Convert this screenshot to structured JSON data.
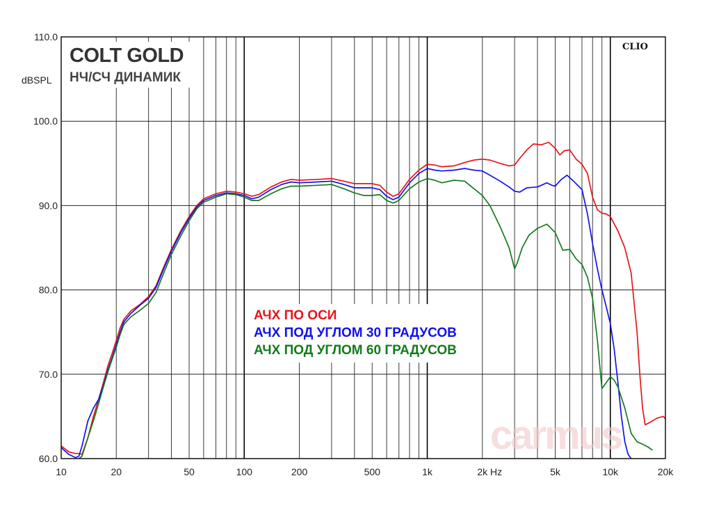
{
  "chart_data": {
    "type": "line",
    "title": "COLT GOLD",
    "subtitle": "НЧ/СЧ ДИНАМИК",
    "brand": "CLIO",
    "watermark": "carmus",
    "ylabel": "dBSPL",
    "xunit": "Hz",
    "xscale": "log",
    "xlim": [
      10,
      20000
    ],
    "ylim": [
      60,
      110
    ],
    "grid": true,
    "yticks": [
      "60.0",
      "70.0",
      "80.0",
      "90.0",
      "100.0",
      "110.0"
    ],
    "xticks": [
      {
        "value": 10,
        "label": "10"
      },
      {
        "value": 20,
        "label": "20"
      },
      {
        "value": 50,
        "label": "50"
      },
      {
        "value": 100,
        "label": "100"
      },
      {
        "value": 200,
        "label": "200"
      },
      {
        "value": 500,
        "label": "500"
      },
      {
        "value": 1000,
        "label": "1k"
      },
      {
        "value": 2000,
        "label": "2k"
      },
      {
        "value": 5000,
        "label": "5k"
      },
      {
        "value": 10000,
        "label": "10k"
      },
      {
        "value": 20000,
        "label": "20k"
      }
    ],
    "legend_position": "center",
    "series": [
      {
        "name": "АЧХ ПО ОСИ",
        "color": "#e8141b",
        "points": [
          [
            10,
            61.5
          ],
          [
            11,
            60.8
          ],
          [
            12,
            60.6
          ],
          [
            12.5,
            60.6
          ],
          [
            13,
            60.5
          ],
          [
            14,
            62.5
          ],
          [
            15,
            65
          ],
          [
            16,
            67
          ],
          [
            17,
            69
          ],
          [
            18,
            71
          ],
          [
            19,
            72.5
          ],
          [
            20,
            74
          ],
          [
            21,
            75.5
          ],
          [
            22,
            76.5
          ],
          [
            24,
            77.5
          ],
          [
            27,
            78.3
          ],
          [
            30,
            79.2
          ],
          [
            33,
            80.5
          ],
          [
            36,
            82.5
          ],
          [
            40,
            84.8
          ],
          [
            45,
            87
          ],
          [
            50,
            88.7
          ],
          [
            55,
            90
          ],
          [
            60,
            90.8
          ],
          [
            70,
            91.4
          ],
          [
            80,
            91.7
          ],
          [
            90,
            91.6
          ],
          [
            100,
            91.4
          ],
          [
            110,
            91.1
          ],
          [
            120,
            91.3
          ],
          [
            140,
            92.2
          ],
          [
            160,
            92.8
          ],
          [
            180,
            93.1
          ],
          [
            200,
            93.0
          ],
          [
            250,
            93.1
          ],
          [
            300,
            93.2
          ],
          [
            350,
            92.9
          ],
          [
            400,
            92.6
          ],
          [
            500,
            92.6
          ],
          [
            550,
            92.4
          ],
          [
            600,
            91.6
          ],
          [
            650,
            91.1
          ],
          [
            700,
            91.4
          ],
          [
            800,
            93.1
          ],
          [
            900,
            94.2
          ],
          [
            1000,
            94.9
          ],
          [
            1100,
            94.8
          ],
          [
            1200,
            94.6
          ],
          [
            1400,
            94.7
          ],
          [
            1600,
            95.1
          ],
          [
            1800,
            95.4
          ],
          [
            2000,
            95.5
          ],
          [
            2200,
            95.4
          ],
          [
            2500,
            95.0
          ],
          [
            2800,
            94.7
          ],
          [
            3000,
            94.8
          ],
          [
            3200,
            95.6
          ],
          [
            3500,
            96.6
          ],
          [
            3800,
            97.3
          ],
          [
            4200,
            97.2
          ],
          [
            4600,
            97.5
          ],
          [
            5000,
            96.8
          ],
          [
            5300,
            96.0
          ],
          [
            5600,
            96.5
          ],
          [
            6000,
            96.6
          ],
          [
            6500,
            95.5
          ],
          [
            7000,
            94.9
          ],
          [
            7500,
            93.8
          ],
          [
            8000,
            91
          ],
          [
            8500,
            89.5
          ],
          [
            9000,
            89.1
          ],
          [
            9500,
            89
          ],
          [
            10000,
            88.7
          ],
          [
            11000,
            87
          ],
          [
            12000,
            85
          ],
          [
            13000,
            82
          ],
          [
            14000,
            75
          ],
          [
            14500,
            70
          ],
          [
            15000,
            66
          ],
          [
            15500,
            64
          ],
          [
            16500,
            64.3
          ],
          [
            18000,
            64.8
          ],
          [
            19500,
            65
          ],
          [
            20000,
            64.7
          ],
          [
            20500,
            63.8
          ],
          [
            21500,
            62.5
          ]
        ]
      },
      {
        "name": "АЧХ ПОД УГЛОМ 30 ГРАДУСОВ",
        "color": "#1111ee",
        "points": [
          [
            10,
            61.3
          ],
          [
            11,
            60.5
          ],
          [
            12,
            60.1
          ],
          [
            12.5,
            60.3
          ],
          [
            13,
            61.5
          ],
          [
            14,
            64.5
          ],
          [
            15,
            66
          ],
          [
            16,
            67
          ],
          [
            17,
            68.7
          ],
          [
            18,
            70.5
          ],
          [
            19,
            72
          ],
          [
            20,
            73.5
          ],
          [
            21,
            75
          ],
          [
            22,
            76.2
          ],
          [
            24,
            77.2
          ],
          [
            27,
            78.2
          ],
          [
            30,
            79
          ],
          [
            33,
            80.3
          ],
          [
            36,
            82.3
          ],
          [
            40,
            84.6
          ],
          [
            45,
            86.8
          ],
          [
            50,
            88.5
          ],
          [
            55,
            89.8
          ],
          [
            60,
            90.6
          ],
          [
            70,
            91.2
          ],
          [
            80,
            91.5
          ],
          [
            90,
            91.4
          ],
          [
            100,
            91.2
          ],
          [
            110,
            90.8
          ],
          [
            120,
            91.0
          ],
          [
            140,
            91.9
          ],
          [
            160,
            92.5
          ],
          [
            180,
            92.8
          ],
          [
            200,
            92.7
          ],
          [
            250,
            92.8
          ],
          [
            300,
            92.9
          ],
          [
            350,
            92.5
          ],
          [
            400,
            92.1
          ],
          [
            500,
            92.1
          ],
          [
            550,
            91.9
          ],
          [
            600,
            91.1
          ],
          [
            650,
            90.7
          ],
          [
            700,
            91.0
          ],
          [
            800,
            92.7
          ],
          [
            900,
            93.8
          ],
          [
            1000,
            94.4
          ],
          [
            1100,
            94.2
          ],
          [
            1200,
            94.1
          ],
          [
            1400,
            94.2
          ],
          [
            1600,
            94.4
          ],
          [
            1800,
            94.2
          ],
          [
            2000,
            94.1
          ],
          [
            2200,
            93.6
          ],
          [
            2500,
            92.9
          ],
          [
            2800,
            92.2
          ],
          [
            3000,
            91.7
          ],
          [
            3200,
            91.6
          ],
          [
            3500,
            92.1
          ],
          [
            4000,
            92.2
          ],
          [
            4500,
            92.7
          ],
          [
            4800,
            92.4
          ],
          [
            5000,
            92.3
          ],
          [
            5400,
            93.1
          ],
          [
            5800,
            93.6
          ],
          [
            6300,
            92.9
          ],
          [
            7000,
            91.9
          ],
          [
            7500,
            89
          ],
          [
            8000,
            85.5
          ],
          [
            8500,
            82.5
          ],
          [
            9000,
            80
          ],
          [
            9500,
            78
          ],
          [
            10000,
            76
          ],
          [
            10500,
            73
          ],
          [
            11000,
            69
          ],
          [
            11500,
            65
          ],
          [
            12000,
            62
          ],
          [
            12500,
            60.5
          ],
          [
            13000,
            60
          ]
        ]
      },
      {
        "name": "АЧХ ПОД УГЛОМ 60 ГРАДУСОВ",
        "color": "#137a1e",
        "points": [
          [
            12.5,
            60.0
          ],
          [
            13,
            60.3
          ],
          [
            14,
            62.5
          ],
          [
            15,
            64.5
          ],
          [
            16,
            66.5
          ],
          [
            17,
            68.5
          ],
          [
            18,
            70.3
          ],
          [
            19,
            71.8
          ],
          [
            20,
            73.2
          ],
          [
            21,
            74.7
          ],
          [
            22,
            75.9
          ],
          [
            24,
            76.8
          ],
          [
            27,
            77.6
          ],
          [
            30,
            78.4
          ],
          [
            33,
            79.7
          ],
          [
            36,
            81.8
          ],
          [
            40,
            84.2
          ],
          [
            45,
            86.4
          ],
          [
            50,
            88.2
          ],
          [
            55,
            89.6
          ],
          [
            60,
            90.4
          ],
          [
            70,
            91.0
          ],
          [
            80,
            91.4
          ],
          [
            90,
            91.3
          ],
          [
            100,
            91.0
          ],
          [
            110,
            90.6
          ],
          [
            120,
            90.6
          ],
          [
            140,
            91.4
          ],
          [
            160,
            92.0
          ],
          [
            180,
            92.3
          ],
          [
            200,
            92.3
          ],
          [
            250,
            92.4
          ],
          [
            300,
            92.5
          ],
          [
            350,
            92.0
          ],
          [
            400,
            91.5
          ],
          [
            450,
            91.2
          ],
          [
            500,
            91.2
          ],
          [
            550,
            91.3
          ],
          [
            600,
            90.6
          ],
          [
            650,
            90.3
          ],
          [
            700,
            90.6
          ],
          [
            800,
            92.0
          ],
          [
            900,
            92.8
          ],
          [
            1000,
            93.2
          ],
          [
            1100,
            93.0
          ],
          [
            1200,
            92.7
          ],
          [
            1400,
            93.0
          ],
          [
            1600,
            92.9
          ],
          [
            1800,
            92.0
          ],
          [
            2000,
            91.2
          ],
          [
            2200,
            90.0
          ],
          [
            2500,
            87.5
          ],
          [
            2800,
            85
          ],
          [
            3000,
            82.5
          ],
          [
            3100,
            83.2
          ],
          [
            3300,
            85
          ],
          [
            3600,
            86.5
          ],
          [
            4000,
            87.3
          ],
          [
            4500,
            87.8
          ],
          [
            5000,
            86.8
          ],
          [
            5500,
            84.7
          ],
          [
            6000,
            84.8
          ],
          [
            6500,
            83.7
          ],
          [
            7000,
            83.0
          ],
          [
            7500,
            81.5
          ],
          [
            8000,
            79
          ],
          [
            8500,
            74
          ],
          [
            9000,
            68.3
          ],
          [
            9500,
            69
          ],
          [
            10000,
            69.7
          ],
          [
            10500,
            69.3
          ],
          [
            11000,
            68.5
          ],
          [
            12000,
            66
          ],
          [
            13000,
            63
          ],
          [
            14000,
            62
          ],
          [
            15000,
            61.7
          ],
          [
            16000,
            61.4
          ],
          [
            17000,
            61
          ]
        ]
      }
    ]
  }
}
